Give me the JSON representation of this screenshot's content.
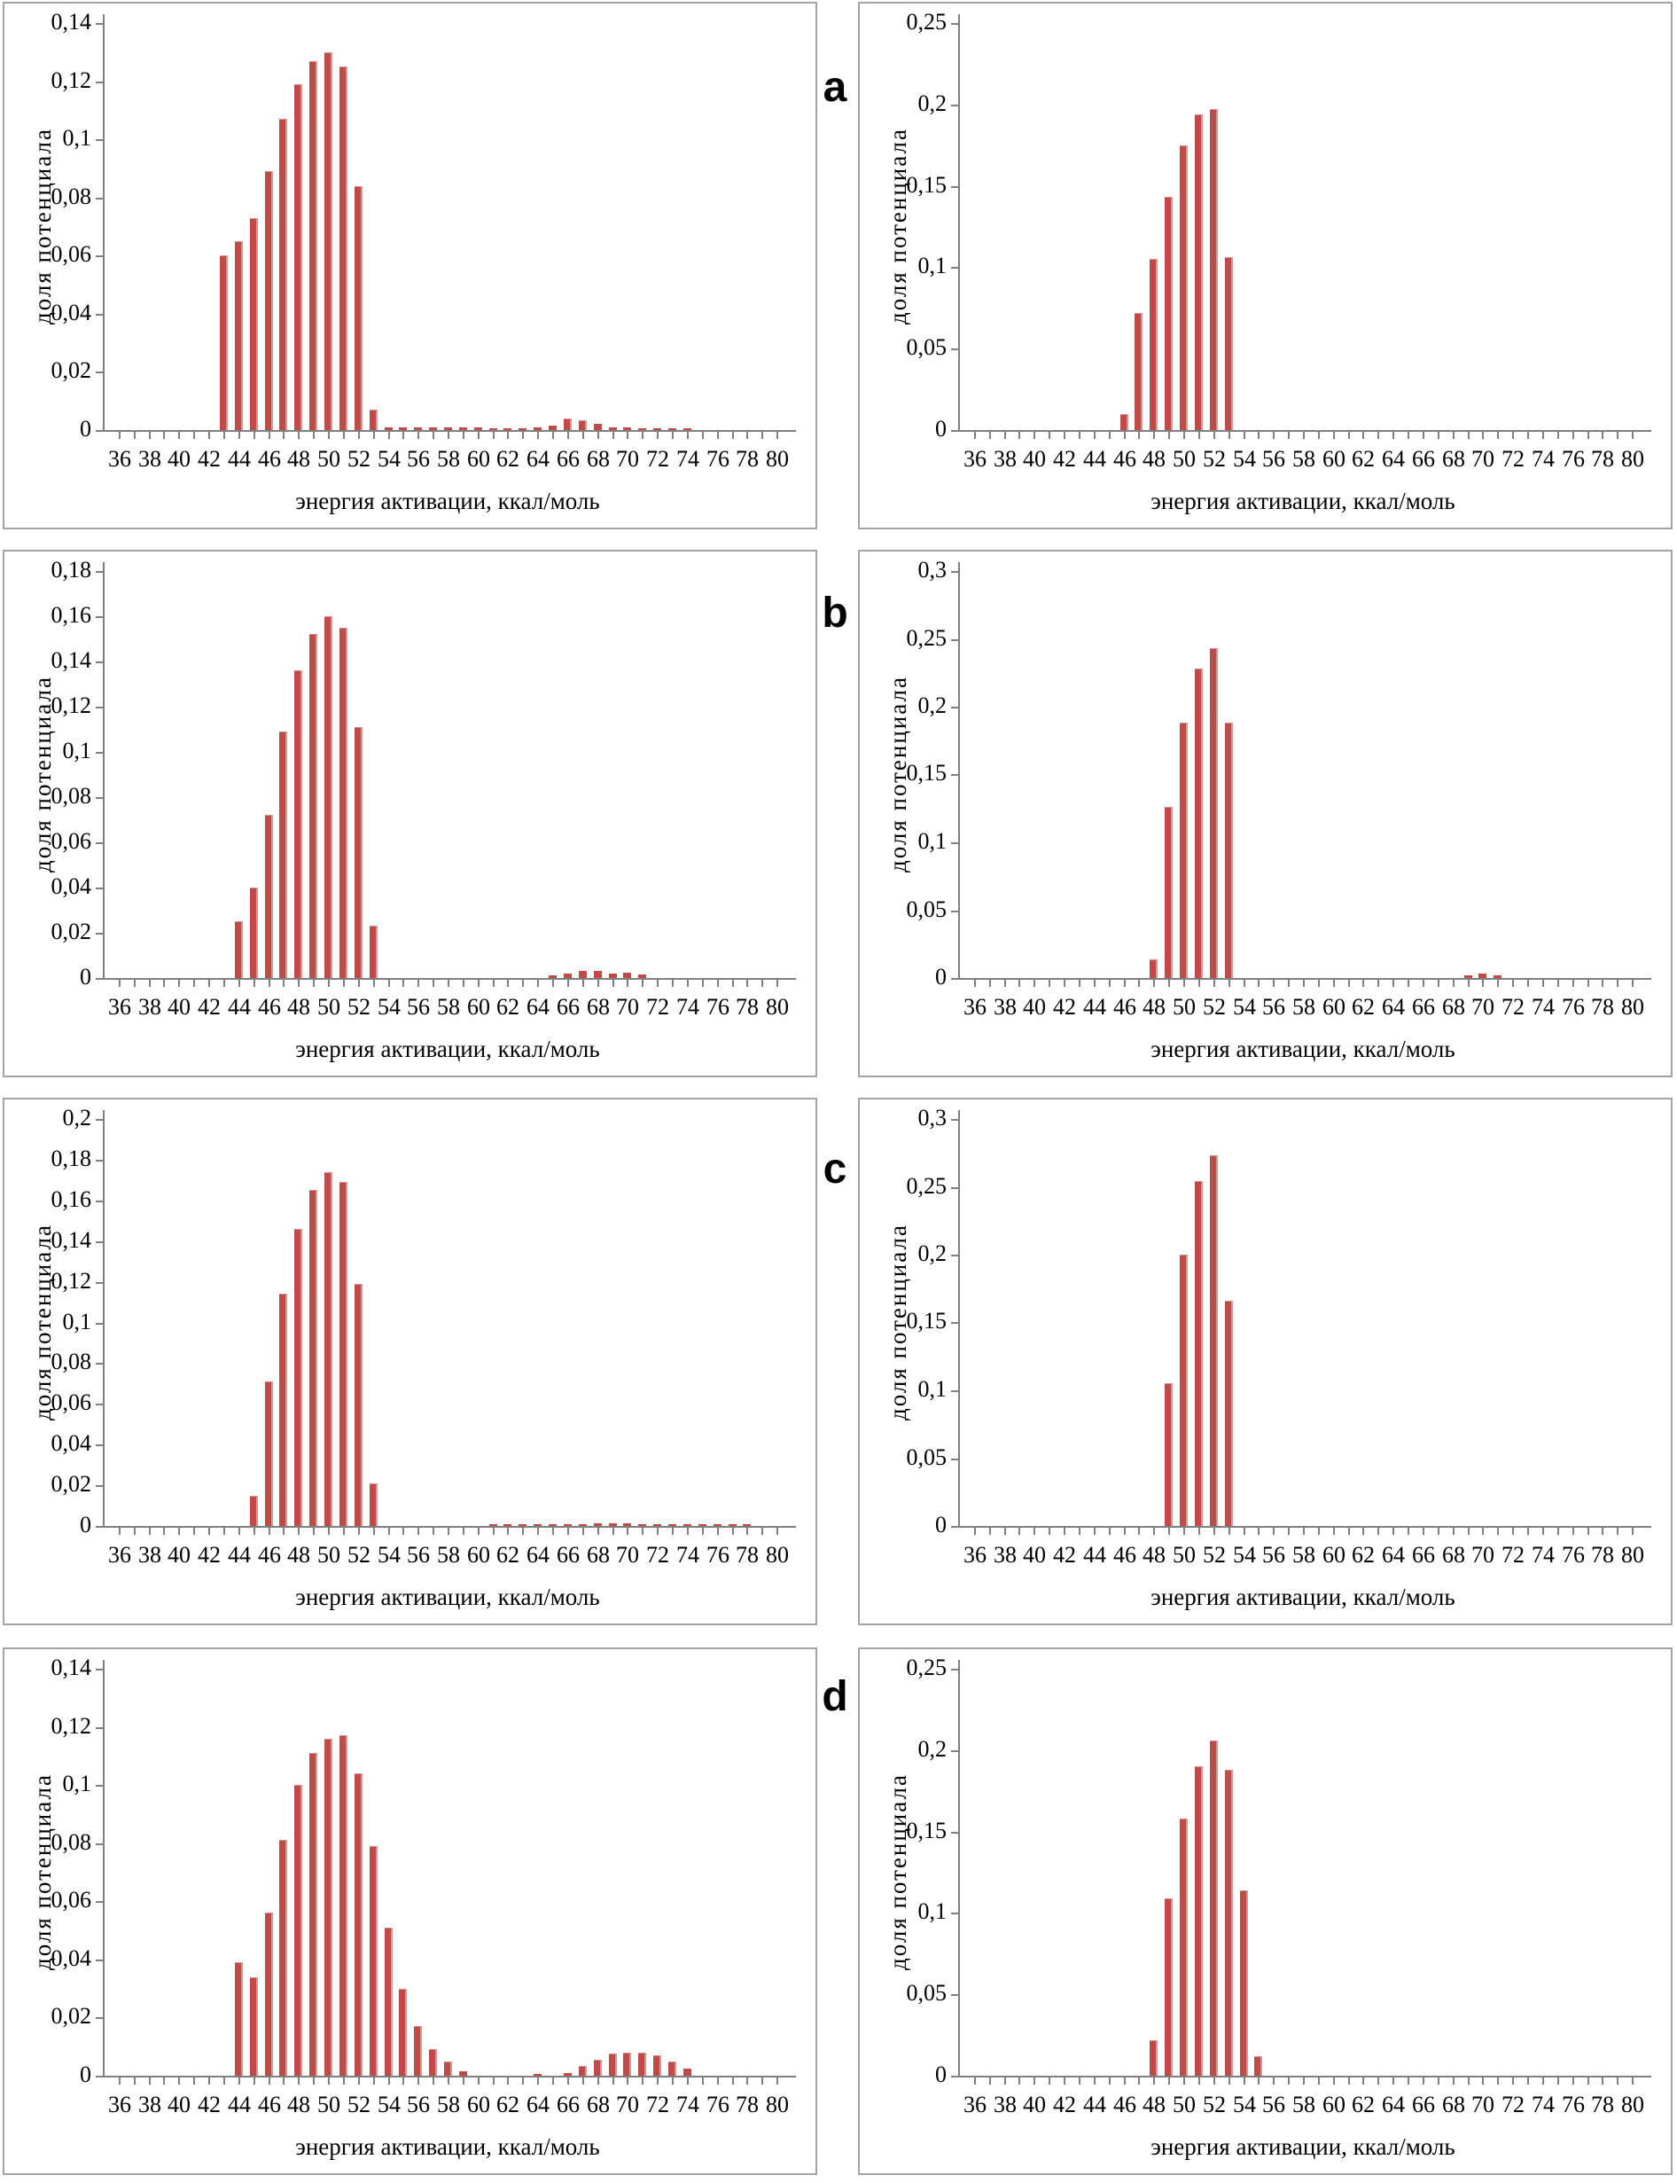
{
  "page": {
    "background": "#ffffff",
    "bar_color": "#bf4a47",
    "bar_edge_color": "#d99693",
    "axis_color": "#7f7f7f",
    "panel_border_color": "#a3a3a3"
  },
  "labels": {
    "row_letters": [
      "a",
      "b",
      "c",
      "d"
    ]
  },
  "axes": {
    "x_title": "энергия активации, ккал/моль",
    "y_title": "доля потенциала",
    "x_tick_labels": [
      "36",
      "38",
      "40",
      "42",
      "44",
      "46",
      "48",
      "50",
      "52",
      "54",
      "56",
      "58",
      "60",
      "62",
      "64",
      "66",
      "68",
      "70",
      "72",
      "74",
      "76",
      "78",
      "80"
    ],
    "x_min": 36,
    "x_max": 80,
    "grid": "off",
    "legend": "none",
    "decimal_separator": ","
  },
  "chart_data": [
    {
      "id": "a-left",
      "row_letter": "a",
      "column": "left",
      "type": "bar",
      "xlabel": "энергия активации, ккал/моль",
      "ylabel": "доля потенциала",
      "ylim": [
        0,
        0.14
      ],
      "ystep": 0.02,
      "ytick_labels": [
        "0",
        "0,02",
        "0,04",
        "0,06",
        "0,08",
        "0,1",
        "0,12",
        "0,14"
      ],
      "bars": [
        [
          43,
          0.06
        ],
        [
          44,
          0.065
        ],
        [
          45,
          0.073
        ],
        [
          46,
          0.089
        ],
        [
          47,
          0.107
        ],
        [
          48,
          0.119
        ],
        [
          49,
          0.127
        ],
        [
          50,
          0.13
        ],
        [
          51,
          0.125
        ],
        [
          52,
          0.084
        ],
        [
          53,
          0.007
        ],
        [
          54,
          0.0008
        ],
        [
          55,
          0.0008
        ],
        [
          56,
          0.0009
        ],
        [
          57,
          0.0009
        ],
        [
          58,
          0.0009
        ],
        [
          59,
          0.0009
        ],
        [
          60,
          0.0008
        ],
        [
          61,
          0.0007
        ],
        [
          62,
          0.0007
        ],
        [
          63,
          0.0007
        ],
        [
          64,
          0.0008
        ],
        [
          65,
          0.0015
        ],
        [
          66,
          0.004
        ],
        [
          67,
          0.0035
        ],
        [
          68,
          0.002
        ],
        [
          69,
          0.001
        ],
        [
          70,
          0.0008
        ],
        [
          71,
          0.0007
        ],
        [
          72,
          0.0006
        ],
        [
          73,
          0.0006
        ],
        [
          74,
          0.0006
        ]
      ]
    },
    {
      "id": "a-right",
      "row_letter": "a",
      "column": "right",
      "type": "bar",
      "xlabel": "энергия активации, ккал/моль",
      "ylabel": "доля потенциала",
      "ylim": [
        0,
        0.25
      ],
      "ystep": 0.05,
      "ytick_labels": [
        "0",
        "0,05",
        "0,1",
        "0,15",
        "0,2",
        "0,25"
      ],
      "bars": [
        [
          46,
          0.01
        ],
        [
          47,
          0.072
        ],
        [
          48,
          0.105
        ],
        [
          49,
          0.143
        ],
        [
          50,
          0.175
        ],
        [
          51,
          0.194
        ],
        [
          52,
          0.197
        ],
        [
          53,
          0.106
        ]
      ]
    },
    {
      "id": "b-left",
      "row_letter": "b",
      "column": "left",
      "type": "bar",
      "xlabel": "энергия активации, ккал/моль",
      "ylabel": "доля потенциала",
      "ylim": [
        0,
        0.18
      ],
      "ystep": 0.02,
      "ytick_labels": [
        "0",
        "0,02",
        "0,04",
        "0,06",
        "0,08",
        "0,1",
        "0,12",
        "0,14",
        "0,16",
        "0,18"
      ],
      "bars": [
        [
          44,
          0.025
        ],
        [
          45,
          0.04
        ],
        [
          46,
          0.072
        ],
        [
          47,
          0.109
        ],
        [
          48,
          0.136
        ],
        [
          49,
          0.152
        ],
        [
          50,
          0.16
        ],
        [
          51,
          0.155
        ],
        [
          52,
          0.111
        ],
        [
          53,
          0.023
        ],
        [
          65,
          0.001
        ],
        [
          66,
          0.002
        ],
        [
          67,
          0.003
        ],
        [
          68,
          0.003
        ],
        [
          69,
          0.002
        ],
        [
          70,
          0.0025
        ],
        [
          71,
          0.0015
        ]
      ]
    },
    {
      "id": "b-right",
      "row_letter": "b",
      "column": "right",
      "type": "bar",
      "xlabel": "энергия активации, ккал/моль",
      "ylabel": "доля потенциала",
      "ylim": [
        0,
        0.3
      ],
      "ystep": 0.05,
      "ytick_labels": [
        "0",
        "0,05",
        "0,1",
        "0,15",
        "0,2",
        "0,25",
        "0,3"
      ],
      "bars": [
        [
          48,
          0.014
        ],
        [
          49,
          0.126
        ],
        [
          50,
          0.188
        ],
        [
          51,
          0.228
        ],
        [
          52,
          0.243
        ],
        [
          53,
          0.188
        ],
        [
          69,
          0.002
        ],
        [
          70,
          0.003
        ],
        [
          71,
          0.002
        ]
      ]
    },
    {
      "id": "c-left",
      "row_letter": "c",
      "column": "left",
      "type": "bar",
      "xlabel": "энергия активации, ккал/моль",
      "ylabel": "доля потенциала",
      "ylim": [
        0,
        0.2
      ],
      "ystep": 0.02,
      "ytick_labels": [
        "0",
        "0,02",
        "0,04",
        "0,06",
        "0,08",
        "0,1",
        "0,12",
        "0,14",
        "0,16",
        "0,18",
        "0,2"
      ],
      "bars": [
        [
          45,
          0.015
        ],
        [
          46,
          0.071
        ],
        [
          47,
          0.114
        ],
        [
          48,
          0.146
        ],
        [
          49,
          0.165
        ],
        [
          50,
          0.174
        ],
        [
          51,
          0.169
        ],
        [
          52,
          0.119
        ],
        [
          53,
          0.021
        ],
        [
          61,
          0.0008
        ],
        [
          62,
          0.0008
        ],
        [
          63,
          0.0008
        ],
        [
          64,
          0.0008
        ],
        [
          65,
          0.0008
        ],
        [
          66,
          0.0008
        ],
        [
          67,
          0.001
        ],
        [
          68,
          0.0013
        ],
        [
          69,
          0.0015
        ],
        [
          70,
          0.0015
        ],
        [
          71,
          0.001
        ],
        [
          72,
          0.0009
        ],
        [
          73,
          0.0008
        ],
        [
          74,
          0.0008
        ],
        [
          75,
          0.0007
        ],
        [
          76,
          0.0007
        ],
        [
          77,
          0.0006
        ],
        [
          78,
          0.0007
        ]
      ]
    },
    {
      "id": "c-right",
      "row_letter": "c",
      "column": "right",
      "type": "bar",
      "xlabel": "энергия активации, ккал/моль",
      "ylabel": "доля потенциала",
      "ylim": [
        0,
        0.3
      ],
      "ystep": 0.05,
      "ytick_labels": [
        "0",
        "0,05",
        "0,1",
        "0,15",
        "0,2",
        "0,25",
        "0,3"
      ],
      "bars": [
        [
          49,
          0.105
        ],
        [
          50,
          0.2
        ],
        [
          51,
          0.254
        ],
        [
          52,
          0.273
        ],
        [
          53,
          0.166
        ]
      ]
    },
    {
      "id": "d-left",
      "row_letter": "d",
      "column": "left",
      "type": "bar",
      "xlabel": "энергия активации, ккал/моль",
      "ylabel": "доля потенциала",
      "ylim": [
        0,
        0.14
      ],
      "ystep": 0.02,
      "ytick_labels": [
        "0",
        "0,02",
        "0,04",
        "0,06",
        "0,08",
        "0,1",
        "0,12",
        "0,14"
      ],
      "bars": [
        [
          44,
          0.039
        ],
        [
          45,
          0.034
        ],
        [
          46,
          0.056
        ],
        [
          47,
          0.081
        ],
        [
          48,
          0.1
        ],
        [
          49,
          0.111
        ],
        [
          50,
          0.116
        ],
        [
          51,
          0.117
        ],
        [
          52,
          0.104
        ],
        [
          53,
          0.079
        ],
        [
          54,
          0.051
        ],
        [
          55,
          0.03
        ],
        [
          56,
          0.017
        ],
        [
          57,
          0.009
        ],
        [
          58,
          0.005
        ],
        [
          59,
          0.0015
        ],
        [
          64,
          0.0005
        ],
        [
          66,
          0.001
        ],
        [
          67,
          0.0035
        ],
        [
          68,
          0.0055
        ],
        [
          69,
          0.0075
        ],
        [
          70,
          0.008
        ],
        [
          71,
          0.008
        ],
        [
          72,
          0.007
        ],
        [
          73,
          0.005
        ],
        [
          74,
          0.0025
        ]
      ]
    },
    {
      "id": "d-right",
      "row_letter": "d",
      "column": "right",
      "type": "bar",
      "xlabel": "энергия активации, ккал/моль",
      "ylabel": "доля потенциала",
      "ylim": [
        0,
        0.25
      ],
      "ystep": 0.05,
      "ytick_labels": [
        "0",
        "0,05",
        "0,1",
        "0,15",
        "0,2",
        "0,25"
      ],
      "bars": [
        [
          48,
          0.022
        ],
        [
          49,
          0.109
        ],
        [
          50,
          0.158
        ],
        [
          51,
          0.19
        ],
        [
          52,
          0.206
        ],
        [
          53,
          0.188
        ],
        [
          54,
          0.114
        ],
        [
          55,
          0.012
        ]
      ]
    }
  ]
}
